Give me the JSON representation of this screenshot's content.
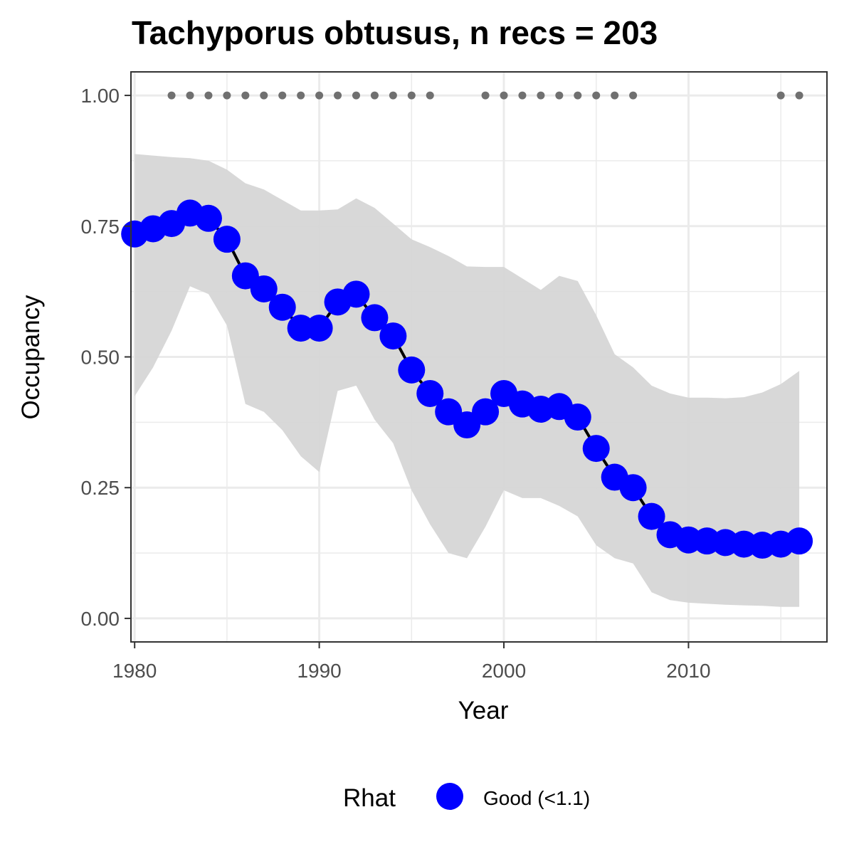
{
  "chart_data": {
    "type": "line",
    "title": "Tachyporus obtusus, n recs = 203",
    "xlabel": "Year",
    "ylabel": "Occupancy",
    "xlim": [
      1979.8,
      2017.5
    ],
    "ylim": [
      -0.045,
      1.045
    ],
    "x_ticks": [
      1980,
      1990,
      2000,
      2010
    ],
    "x_tick_labels": [
      "1980",
      "1990",
      "2000",
      "2010"
    ],
    "y_ticks": [
      0,
      0.25,
      0.5,
      0.75,
      1.0
    ],
    "y_tick_labels": [
      "0.00",
      "0.25",
      "0.50",
      "0.75",
      "1.00"
    ],
    "grid": true,
    "legend": {
      "title": "Rhat",
      "position": "bottom",
      "entries": [
        {
          "label": "Good (<1.1)",
          "color": "#0000ff"
        }
      ]
    },
    "colors": {
      "points": "#0000ff",
      "line": "#000000",
      "ribbon": "#d6d6d6",
      "record_dots": "#707070",
      "grid": "#ebebeb",
      "panel_border": "#333333"
    },
    "series": [
      {
        "x": [
          1980,
          1981,
          1982,
          1983,
          1984,
          1985,
          1986,
          1987,
          1988,
          1989,
          1990,
          1991,
          1992,
          1993,
          1994,
          1995,
          1996,
          1997,
          1998,
          1999,
          2000,
          2001,
          2002,
          2003,
          2004,
          2005,
          2006,
          2007,
          2008,
          2009,
          2010,
          2011,
          2012,
          2013,
          2014,
          2015,
          2016
        ],
        "y": [
          0.735,
          0.745,
          0.755,
          0.775,
          0.765,
          0.725,
          0.655,
          0.63,
          0.595,
          0.555,
          0.555,
          0.605,
          0.62,
          0.575,
          0.54,
          0.475,
          0.43,
          0.395,
          0.37,
          0.395,
          0.43,
          0.41,
          0.4,
          0.405,
          0.385,
          0.325,
          0.27,
          0.25,
          0.195,
          0.16,
          0.15,
          0.148,
          0.145,
          0.142,
          0.14,
          0.142,
          0.148
        ],
        "lower": [
          0.425,
          0.48,
          0.55,
          0.635,
          0.62,
          0.56,
          0.41,
          0.395,
          0.36,
          0.31,
          0.28,
          0.435,
          0.445,
          0.38,
          0.335,
          0.245,
          0.18,
          0.125,
          0.115,
          0.175,
          0.245,
          0.23,
          0.23,
          0.215,
          0.195,
          0.14,
          0.115,
          0.105,
          0.05,
          0.035,
          0.03,
          0.028,
          0.026,
          0.025,
          0.024,
          0.022,
          0.022
        ],
        "upper": [
          0.888,
          0.885,
          0.882,
          0.88,
          0.875,
          0.858,
          0.832,
          0.82,
          0.8,
          0.78,
          0.78,
          0.782,
          0.803,
          0.785,
          0.755,
          0.725,
          0.71,
          0.693,
          0.673,
          0.672,
          0.672,
          0.65,
          0.628,
          0.655,
          0.645,
          0.58,
          0.505,
          0.48,
          0.445,
          0.43,
          0.422,
          0.422,
          0.421,
          0.423,
          0.432,
          0.448,
          0.473
        ]
      }
    ],
    "record_years": [
      1982,
      1983,
      1984,
      1985,
      1986,
      1987,
      1988,
      1989,
      1990,
      1991,
      1992,
      1993,
      1994,
      1995,
      1996,
      1999,
      2000,
      2001,
      2002,
      2003,
      2004,
      2005,
      2006,
      2007,
      2015,
      2016
    ],
    "record_y": 1.0
  }
}
